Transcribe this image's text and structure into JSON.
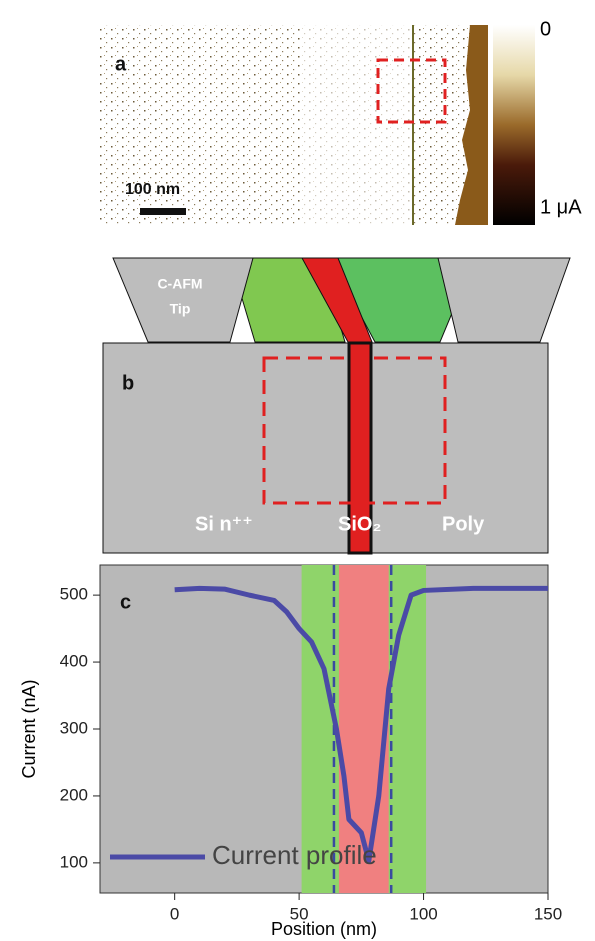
{
  "panel_a": {
    "label": "a",
    "scale_bar": "100 nm",
    "colorbar_top": "0",
    "colorbar_bottom": "1 μA"
  },
  "panel_b": {
    "label": "b",
    "tip": [
      "C-AFM",
      "Tip"
    ],
    "regions": [
      "Si n⁺⁺",
      "SiO₂",
      "Poly"
    ]
  },
  "chart_data": {
    "type": "line",
    "panel_label": "c",
    "x_label": "Position (nm)",
    "y_label": "Current (nA)",
    "x": [
      0,
      10,
      20,
      30,
      40,
      45,
      50,
      55,
      60,
      65,
      68,
      70,
      75,
      78,
      82,
      86,
      90,
      95,
      100,
      120,
      150
    ],
    "series": [
      {
        "name": "Current profile",
        "color": "#4b4aa6",
        "values": [
          508,
          510,
          509,
          500,
          492,
          475,
          450,
          430,
          390,
          300,
          230,
          165,
          145,
          103,
          200,
          360,
          440,
          500,
          507,
          510,
          510
        ]
      }
    ],
    "bands": [
      {
        "range": [
          51,
          101
        ],
        "color": "#8fd46a"
      },
      {
        "range": [
          66,
          86
        ],
        "color": "#f08080"
      }
    ],
    "vlines": [
      64,
      87
    ],
    "xlim": [
      -30,
      150
    ],
    "ylim": [
      55,
      545
    ],
    "xticks": [
      0,
      50,
      100,
      150
    ],
    "yticks": [
      100,
      200,
      300,
      400,
      500
    ]
  }
}
